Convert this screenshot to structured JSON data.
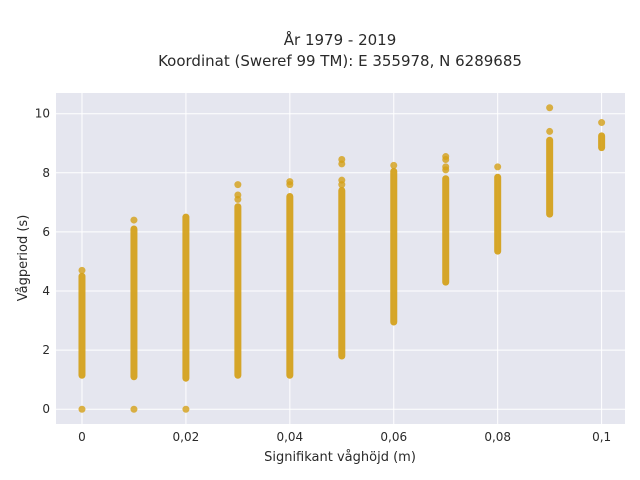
{
  "chart_data": {
    "type": "scatter",
    "title": "År 1979 - 2019",
    "subtitle": "Koordinat (Sweref 99 TM): E 355978, N 6289685",
    "xlabel": "Signifikant våghöjd (m)",
    "ylabel": "Vågperiod (s)",
    "xlim": [
      -0.005,
      0.1045
    ],
    "ylim": [
      -0.5,
      10.7
    ],
    "grid": true,
    "legend": "none",
    "x_ticks": [
      {
        "value": 0,
        "label": "0"
      },
      {
        "value": 0.02,
        "label": "0,02"
      },
      {
        "value": 0.04,
        "label": "0,04"
      },
      {
        "value": 0.06,
        "label": "0,06"
      },
      {
        "value": 0.08,
        "label": "0,08"
      },
      {
        "value": 0.1,
        "label": "0,1"
      }
    ],
    "y_ticks": [
      {
        "value": 0,
        "label": "0"
      },
      {
        "value": 2,
        "label": "2"
      },
      {
        "value": 4,
        "label": "4"
      },
      {
        "value": 6,
        "label": "6"
      },
      {
        "value": 8,
        "label": "8"
      },
      {
        "value": 10,
        "label": "10"
      }
    ],
    "marker_color": "#d4a017",
    "plot_background": "#e5e6ef",
    "columns": [
      {
        "x": 0.0,
        "y_min": 1.15,
        "y_max": 4.5,
        "outliers": [
          0.0,
          4.7
        ]
      },
      {
        "x": 0.01,
        "y_min": 1.1,
        "y_max": 6.1,
        "outliers": [
          0.0,
          6.4
        ]
      },
      {
        "x": 0.02,
        "y_min": 1.05,
        "y_max": 6.5,
        "outliers": [
          0.0
        ]
      },
      {
        "x": 0.03,
        "y_min": 1.15,
        "y_max": 6.85,
        "outliers": [
          7.1,
          7.25,
          7.6
        ]
      },
      {
        "x": 0.04,
        "y_min": 1.15,
        "y_max": 7.2,
        "outliers": [
          7.6,
          7.7
        ]
      },
      {
        "x": 0.05,
        "y_min": 1.8,
        "y_max": 7.4,
        "outliers": [
          7.6,
          7.75,
          8.3,
          8.45
        ]
      },
      {
        "x": 0.06,
        "y_min": 2.95,
        "y_max": 8.05,
        "outliers": [
          8.25
        ]
      },
      {
        "x": 0.07,
        "y_min": 4.3,
        "y_max": 7.8,
        "outliers": [
          8.1,
          8.2,
          8.45,
          8.55
        ]
      },
      {
        "x": 0.08,
        "y_min": 5.35,
        "y_max": 7.85,
        "outliers": [
          8.2
        ]
      },
      {
        "x": 0.09,
        "y_min": 6.6,
        "y_max": 9.1,
        "outliers": [
          9.4,
          10.2
        ]
      },
      {
        "x": 0.1,
        "y_min": 8.85,
        "y_max": 9.25,
        "outliers": [
          9.7
        ]
      }
    ]
  }
}
